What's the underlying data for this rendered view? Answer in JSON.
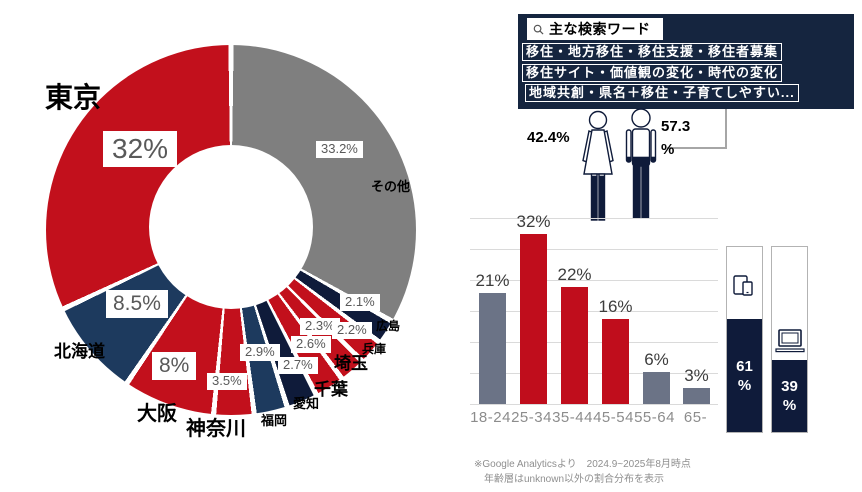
{
  "chart_data": [
    {
      "id": "prefecture_donut",
      "type": "pie",
      "note": "donut chart of access share by prefecture, drawn counterclockwise from top in descending order",
      "segments": [
        {
          "label": "東京",
          "value": 32,
          "display": "32%",
          "color": "#c2101c"
        },
        {
          "label": "北海道",
          "value": 8.5,
          "display": "8.5%",
          "color": "#1d3a5e"
        },
        {
          "label": "大阪",
          "value": 8,
          "display": "8%",
          "color": "#c2101c"
        },
        {
          "label": "神奈川",
          "value": 3.5,
          "display": "3.5%",
          "color": "#c2101c"
        },
        {
          "label": "福岡",
          "value": 2.9,
          "display": "2.9%",
          "color": "#1d3a5e"
        },
        {
          "label": "愛知",
          "value": 2.7,
          "display": "2.7%",
          "color": "#0f1b3a"
        },
        {
          "label": "千葉",
          "value": 2.6,
          "display": "2.6%",
          "color": "#c2101c"
        },
        {
          "label": "埼玉",
          "value": 2.3,
          "display": "2.3%",
          "color": "#c2101c"
        },
        {
          "label": "兵庫",
          "value": 2.2,
          "display": "2.2%",
          "color": "#c2101c"
        },
        {
          "label": "広島",
          "value": 2.1,
          "display": "2.1%",
          "color": "#0f1b3a"
        },
        {
          "label": "その他",
          "value": 33.2,
          "display": "33.2%",
          "color": "#7f7f7f"
        }
      ]
    },
    {
      "id": "age_bar",
      "type": "bar",
      "categories": [
        "18-24",
        "25-34",
        "35-44",
        "45-54",
        "55-64",
        "65-"
      ],
      "values": [
        21,
        32,
        22,
        16,
        6,
        3
      ],
      "labels": [
        "21%",
        "32%",
        "22%",
        "16%",
        "6%",
        "3%"
      ],
      "colors": [
        "#6b7386",
        "#c00d1c",
        "#c00d1c",
        "#c00d1c",
        "#6b7386",
        "#6b7386"
      ],
      "unit": "%",
      "grid": true
    },
    {
      "id": "gender_split",
      "type": "pictogram",
      "series": [
        {
          "name": "female",
          "value": 42.4,
          "display": "42.4%"
        },
        {
          "name": "male",
          "value": 57.3,
          "display_value": "57.3",
          "display_unit": "%"
        }
      ]
    },
    {
      "id": "device_split",
      "type": "stacked-bar",
      "bars": [
        {
          "icon": "mobile-tablet-icon",
          "value": 61,
          "display_value": "61",
          "display_unit": "%"
        },
        {
          "icon": "laptop-icon",
          "value": 39,
          "display_value": "39",
          "display_unit": "%"
        }
      ]
    }
  ],
  "search_box": {
    "icon": "search-icon",
    "title": "主な検索ワード",
    "lines": [
      "移住・地方移住・移住支援・移住者募集",
      "移住サイト・価値観の変化・時代の変化",
      "地域共創・県名＋移住・子育てしやすい..."
    ]
  },
  "footnote": {
    "line1": "※Google Analyticsより　2024.9~2025年8月時点",
    "line2": "年齢層はunknown以外の割合分布を表示"
  }
}
